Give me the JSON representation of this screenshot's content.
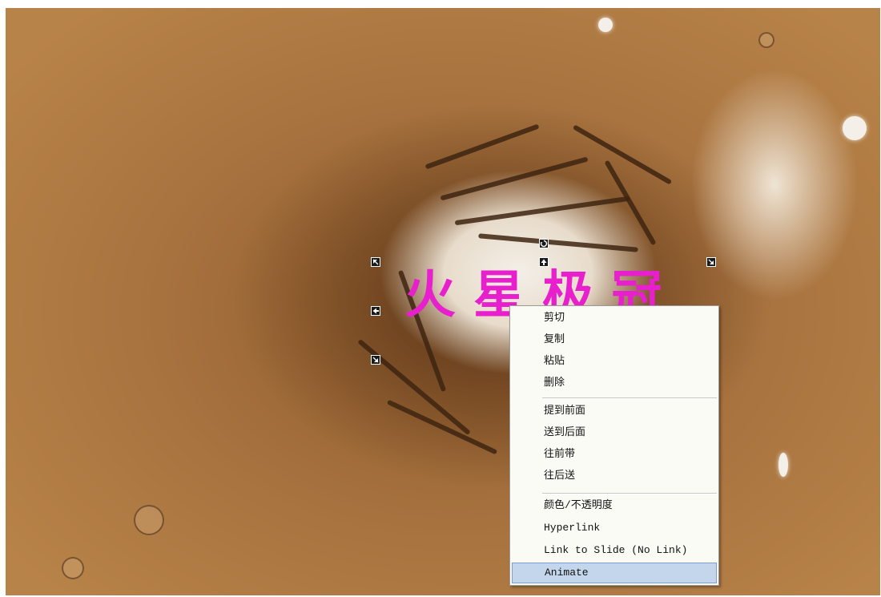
{
  "slide": {
    "title_text": "火星极冠",
    "text_color": "#e81fcc"
  },
  "handles": {
    "rotate_icon": "rotate-icon",
    "resize_icons": [
      "resize-nw-icon",
      "resize-n-icon",
      "resize-ne-icon",
      "resize-w-icon",
      "resize-sw-icon"
    ]
  },
  "context_menu": {
    "group1": [
      "剪切",
      "复制",
      "粘贴",
      "删除"
    ],
    "group2": [
      "提到前面",
      "送到后面",
      "往前带",
      "往后送"
    ],
    "group3": [
      "颜色/不透明度",
      "Hyperlink",
      "Link to Slide (No Link)",
      "Animate"
    ],
    "highlighted": "Animate",
    "highlight_color": "#c4d6ec"
  }
}
